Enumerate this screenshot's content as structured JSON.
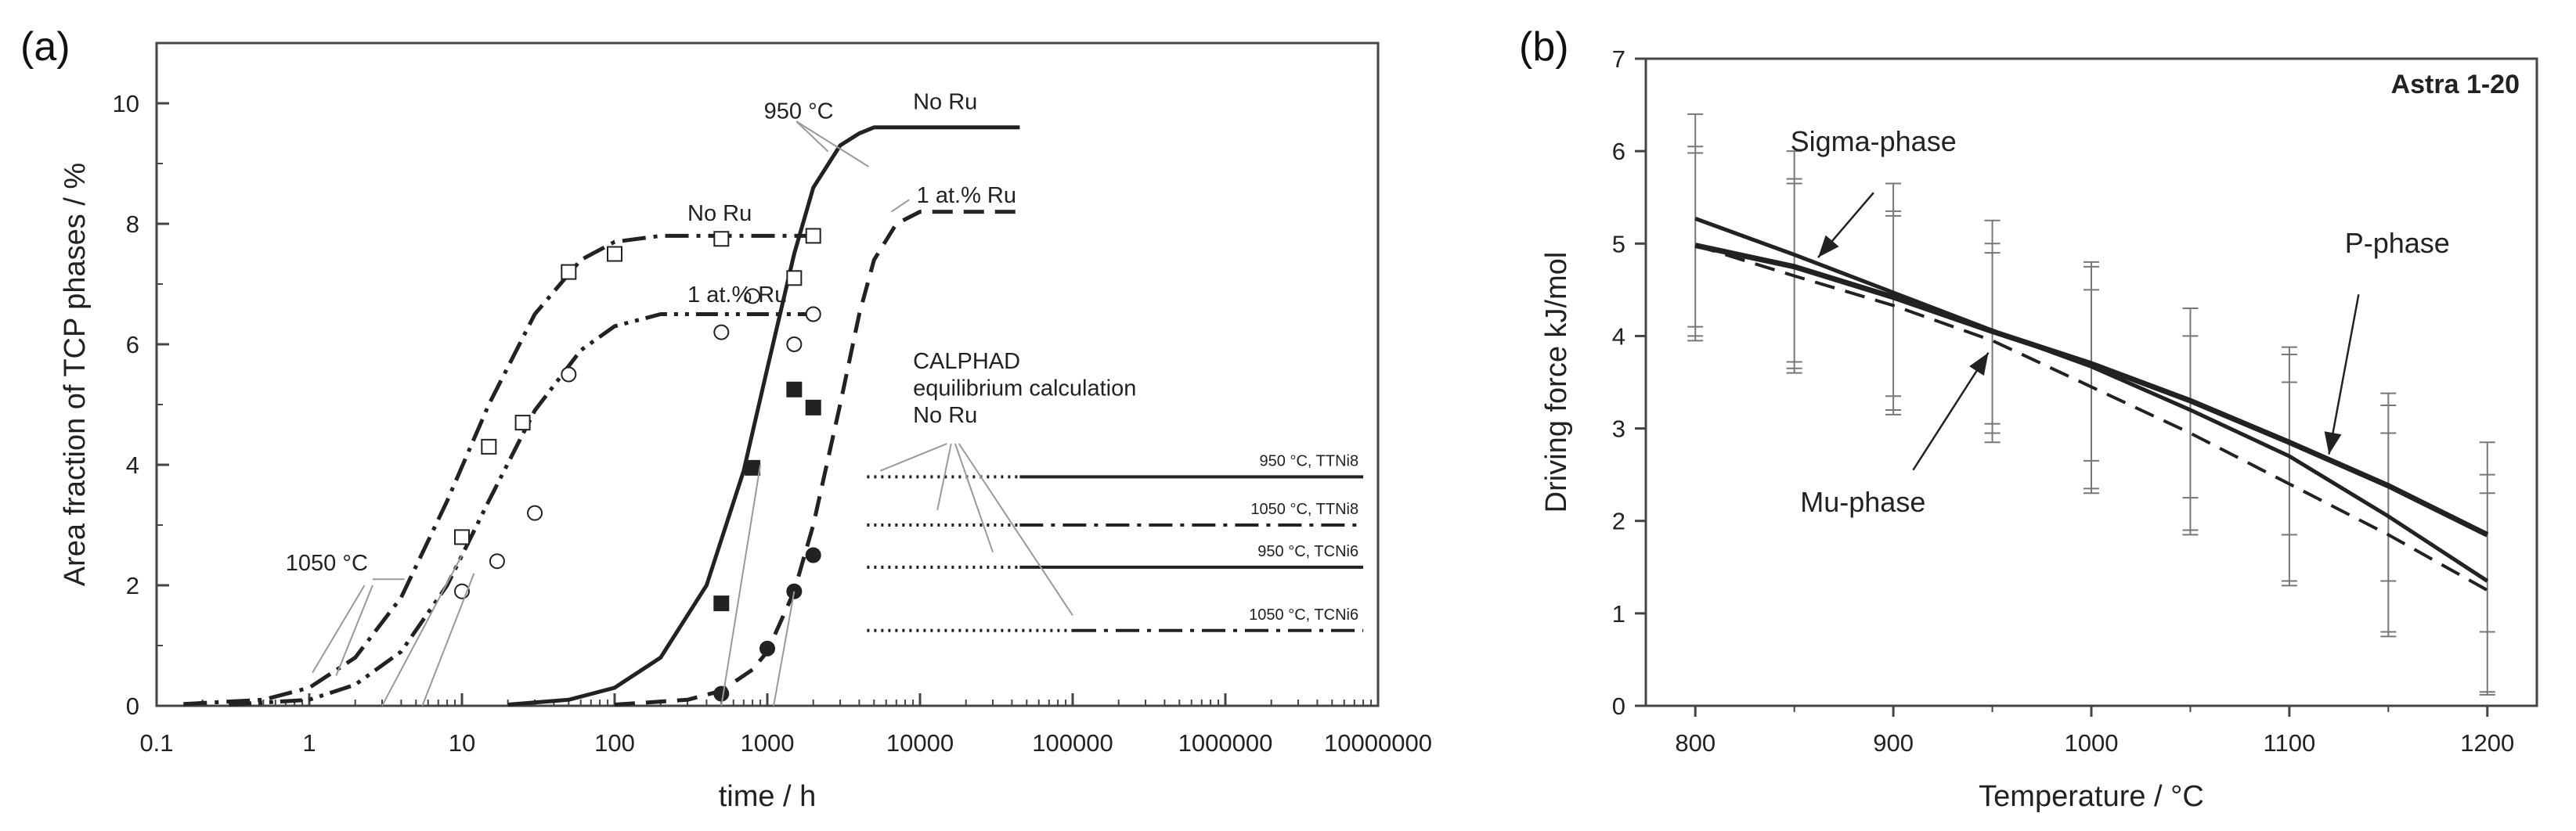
{
  "panels": {
    "a_label": "(a)",
    "b_label": "(b)"
  },
  "colors": {
    "ink": "#222222",
    "axis": "#444444",
    "ref_line": "#999999"
  },
  "chart_data": [
    {
      "id": "a",
      "type": "line",
      "xlabel": "time / h",
      "ylabel": "Area fraction of TCP phases / %",
      "xscale": "log",
      "xlim": [
        0.1,
        10000000
      ],
      "ylim": [
        0,
        11
      ],
      "x_ticks": [
        0.1,
        1,
        10,
        100,
        1000,
        10000,
        100000,
        1000000,
        10000000
      ],
      "x_tick_labels": [
        "0.1",
        "1",
        "10",
        "100",
        "1000",
        "10000",
        "100000",
        "1000000",
        "10000000"
      ],
      "y_ticks": [
        0,
        2,
        4,
        6,
        8,
        10
      ],
      "y_tick_labels": [
        "0",
        "2",
        "4",
        "6",
        "8",
        "10"
      ],
      "series": [
        {
          "style": "dashdot",
          "width": 5,
          "x": [
            0.15,
            0.5,
            1,
            2,
            4,
            8,
            15,
            30,
            60,
            100,
            200,
            500,
            1000,
            2000
          ],
          "y": [
            0.03,
            0.1,
            0.3,
            0.8,
            1.8,
            3.4,
            5.0,
            6.5,
            7.4,
            7.7,
            7.8,
            7.8,
            7.8,
            7.8
          ]
        },
        {
          "style": "dashdotdot",
          "width": 5,
          "x": [
            0.3,
            1,
            2,
            4,
            8,
            15,
            30,
            60,
            100,
            200,
            500,
            1000,
            2000
          ],
          "y": [
            0.02,
            0.1,
            0.35,
            0.9,
            2.0,
            3.4,
            4.9,
            5.9,
            6.3,
            6.5,
            6.5,
            6.5,
            6.5
          ]
        },
        {
          "style": "solid",
          "width": 5,
          "x": [
            20,
            50,
            100,
            200,
            400,
            700,
            1000,
            1500,
            2000,
            3000,
            4000,
            5000,
            8000,
            15000,
            45000
          ],
          "y": [
            0.02,
            0.1,
            0.3,
            0.8,
            2.0,
            3.9,
            5.6,
            7.5,
            8.6,
            9.3,
            9.5,
            9.6,
            9.6,
            9.6,
            9.6
          ]
        },
        {
          "style": "dashed",
          "width": 5,
          "x": [
            100,
            300,
            500,
            800,
            1000,
            1500,
            2000,
            3000,
            4000,
            5000,
            7000,
            10000,
            45000
          ],
          "y": [
            0.02,
            0.1,
            0.25,
            0.6,
            0.9,
            1.9,
            3.0,
            5.0,
            6.5,
            7.4,
            8.0,
            8.2,
            8.2
          ]
        }
      ],
      "markers": [
        {
          "shape": "open-square",
          "x": [
            10,
            15,
            25,
            50,
            100,
            500,
            1500,
            2000
          ],
          "y": [
            2.8,
            4.3,
            4.7,
            7.2,
            7.5,
            7.75,
            7.1,
            7.8
          ]
        },
        {
          "shape": "open-circle",
          "x": [
            10,
            17,
            30,
            50,
            500,
            800,
            1500,
            2000
          ],
          "y": [
            1.9,
            2.4,
            3.2,
            5.5,
            6.2,
            6.8,
            6.0,
            6.5
          ]
        },
        {
          "shape": "filled-square",
          "x": [
            500,
            800,
            1500,
            2000
          ],
          "y": [
            1.7,
            3.95,
            5.25,
            4.95
          ]
        },
        {
          "shape": "filled-circle",
          "x": [
            500,
            1000,
            1500,
            2000
          ],
          "y": [
            0.2,
            0.95,
            1.9,
            2.5
          ]
        }
      ],
      "reference_lines": [
        {
          "y": 3.8,
          "x_dotted": [
            4500,
            45000
          ],
          "x_line": [
            45000,
            8000000
          ],
          "style": "solid",
          "label": "950 °C, TTNi8"
        },
        {
          "y": 3.0,
          "x_dotted": [
            4500,
            45000
          ],
          "x_line": [
            45000,
            8000000
          ],
          "style": "dashdot",
          "label": "1050 °C, TTNi8"
        },
        {
          "y": 2.3,
          "x_dotted": [
            4500,
            45000
          ],
          "x_line": [
            45000,
            8000000
          ],
          "style": "solid",
          "label": "950 °C, TCNi6"
        },
        {
          "y": 1.25,
          "x_dotted": [
            4500,
            100000
          ],
          "x_line": [
            100000,
            8000000
          ],
          "style": "dashdot",
          "label": "1050 °C, TCNi6"
        }
      ],
      "annotations": [
        {
          "text": "No Ru",
          "x": 300,
          "y": 8.05
        },
        {
          "text": "1 at.% Ru",
          "x": 300,
          "y": 6.7
        },
        {
          "text": "950 °C",
          "x": 950,
          "y": 9.75
        },
        {
          "text": "No Ru",
          "x": 9000,
          "y": 9.9
        },
        {
          "text": "1 at.% Ru",
          "x": 9500,
          "y": 8.35
        },
        {
          "text": "1050 °C",
          "x": 0.7,
          "y": 2.25
        },
        {
          "text": "CALPHAD",
          "x": 9000,
          "y": 5.6
        },
        {
          "text": "equilibrium calculation",
          "x": 9000,
          "y": 5.15
        },
        {
          "text": "No Ru",
          "x": 9000,
          "y": 4.7
        }
      ]
    },
    {
      "id": "b",
      "type": "line",
      "title": "Astra 1-20",
      "xlabel": "Temperature  /  °C",
      "ylabel": "Driving force   kJ/mol",
      "xlim": [
        775,
        1225
      ],
      "ylim": [
        0,
        7
      ],
      "x_ticks": [
        800,
        900,
        1000,
        1100,
        1200
      ],
      "x_tick_labels": [
        "800",
        "900",
        "1000",
        "1100",
        "1200"
      ],
      "y_ticks": [
        0,
        1,
        2,
        3,
        4,
        5,
        6,
        7
      ],
      "y_tick_labels": [
        "0",
        "1",
        "2",
        "3",
        "4",
        "5",
        "6",
        "7"
      ],
      "series": [
        {
          "name": "Sigma-phase",
          "style": "solid",
          "width": 5,
          "x": [
            800,
            850,
            900,
            950,
            1000,
            1050,
            1100,
            1150,
            1200
          ],
          "y": [
            5.27,
            4.88,
            4.47,
            4.06,
            3.67,
            3.2,
            2.7,
            2.05,
            1.35
          ]
        },
        {
          "name": "P-phase",
          "style": "solid",
          "width": 7,
          "x": [
            800,
            850,
            900,
            950,
            1000,
            1050,
            1100,
            1150,
            1200
          ],
          "y": [
            4.98,
            4.75,
            4.42,
            4.05,
            3.7,
            3.3,
            2.85,
            2.38,
            1.85
          ]
        },
        {
          "name": "Mu-phase",
          "style": "dashed",
          "width": 4,
          "x": [
            800,
            850,
            900,
            950,
            1000,
            1050,
            1100,
            1150,
            1200
          ],
          "y": [
            4.98,
            4.65,
            4.33,
            3.95,
            3.45,
            2.95,
            2.4,
            1.85,
            1.25
          ]
        }
      ],
      "error_bars": [
        {
          "x": 800,
          "ticks": [
            6.4,
            6.05,
            5.98,
            4.1,
            4.0,
            3.95
          ]
        },
        {
          "x": 850,
          "ticks": [
            6.0,
            5.7,
            5.65,
            3.72,
            3.65,
            3.6
          ]
        },
        {
          "x": 900,
          "ticks": [
            5.65,
            5.35,
            5.3,
            3.35,
            3.2,
            3.15
          ]
        },
        {
          "x": 950,
          "ticks": [
            5.25,
            5.0,
            4.9,
            3.05,
            2.95,
            2.85
          ]
        },
        {
          "x": 1000,
          "ticks": [
            4.8,
            4.75,
            4.5,
            2.65,
            2.35,
            2.3
          ]
        },
        {
          "x": 1050,
          "ticks": [
            4.3,
            4.0,
            2.25,
            1.9,
            1.85
          ]
        },
        {
          "x": 1100,
          "ticks": [
            3.88,
            3.8,
            3.5,
            1.85,
            1.35,
            1.3
          ]
        },
        {
          "x": 1150,
          "ticks": [
            3.38,
            3.25,
            2.95,
            1.35,
            0.8,
            0.75
          ]
        },
        {
          "x": 1200,
          "ticks": [
            2.85,
            2.5,
            2.3,
            0.8,
            0.15,
            0.12
          ]
        }
      ],
      "annotations": [
        {
          "text": "Sigma-phase",
          "x": 848,
          "y": 6.0
        },
        {
          "text": "P-phase",
          "x": 1128,
          "y": 4.9
        },
        {
          "text": "Mu-phase",
          "x": 853,
          "y": 2.1
        }
      ],
      "arrows": [
        {
          "from": [
            890,
            5.55
          ],
          "to": [
            862,
            4.85
          ]
        },
        {
          "from": [
            1135,
            4.45
          ],
          "to": [
            1120,
            2.72
          ]
        },
        {
          "from": [
            910,
            2.55
          ],
          "to": [
            948,
            3.82
          ]
        }
      ]
    }
  ]
}
